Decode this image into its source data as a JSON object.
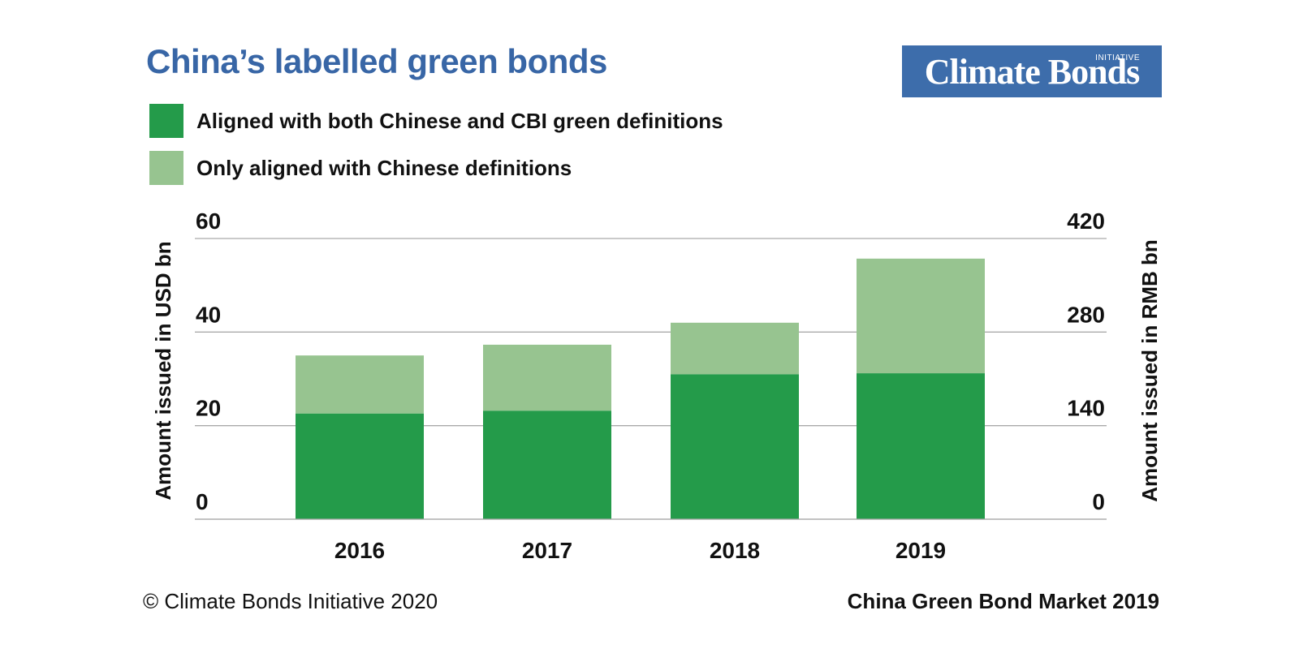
{
  "header": {
    "title": "China’s labelled green bonds",
    "logo_main": "Climate Bonds",
    "logo_small": "INITIATIVE"
  },
  "footer": {
    "left": "© Climate Bonds Initiative 2020",
    "right": "China Green Bond Market 2019"
  },
  "colors": {
    "title": "#3866a6",
    "logo_bg": "#3d6dab",
    "aligned": "#249b4a",
    "chinese_only": "#97c490",
    "gridline": "#aaaaaa"
  },
  "chart_data": {
    "type": "bar",
    "stacked": true,
    "categories": [
      "2016",
      "2017",
      "2018",
      "2019"
    ],
    "series": [
      {
        "name": "Aligned with both Chinese and CBI green definitions",
        "values": [
          22.6,
          23.2,
          31.0,
          31.2
        ]
      },
      {
        "name": "Only aligned with Chinese definitions",
        "values": [
          12.4,
          14.1,
          11.0,
          24.5
        ]
      }
    ],
    "ylabel": "Amount issued in USD bn",
    "y2label": "Amount issued in RMB bn",
    "ylim": [
      0,
      60
    ],
    "y2lim": [
      0,
      420
    ],
    "yticks": [
      "0",
      "20",
      "40",
      "60"
    ],
    "y2ticks": [
      "0",
      "140",
      "280",
      "420"
    ],
    "grid": true,
    "legend_position": "top-left"
  }
}
